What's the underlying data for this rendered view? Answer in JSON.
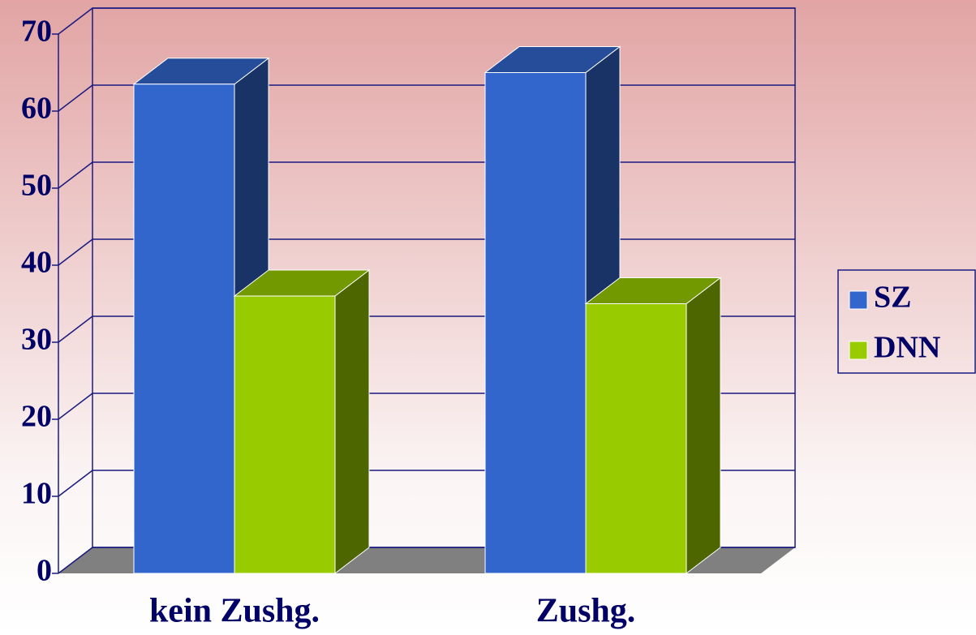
{
  "chart_data": {
    "type": "bar3d",
    "categories": [
      "kein Zushg.",
      "Zushg."
    ],
    "series": [
      {
        "name": "SZ",
        "color": "#3366cc",
        "values": [
          63.5,
          65
        ]
      },
      {
        "name": "DNN",
        "color": "#99cc00",
        "values": [
          36,
          35
        ]
      }
    ],
    "ylim": [
      0,
      70
    ],
    "yticks": [
      0,
      10,
      20,
      30,
      40,
      50,
      60,
      70
    ],
    "grid": true,
    "legend": "right"
  }
}
